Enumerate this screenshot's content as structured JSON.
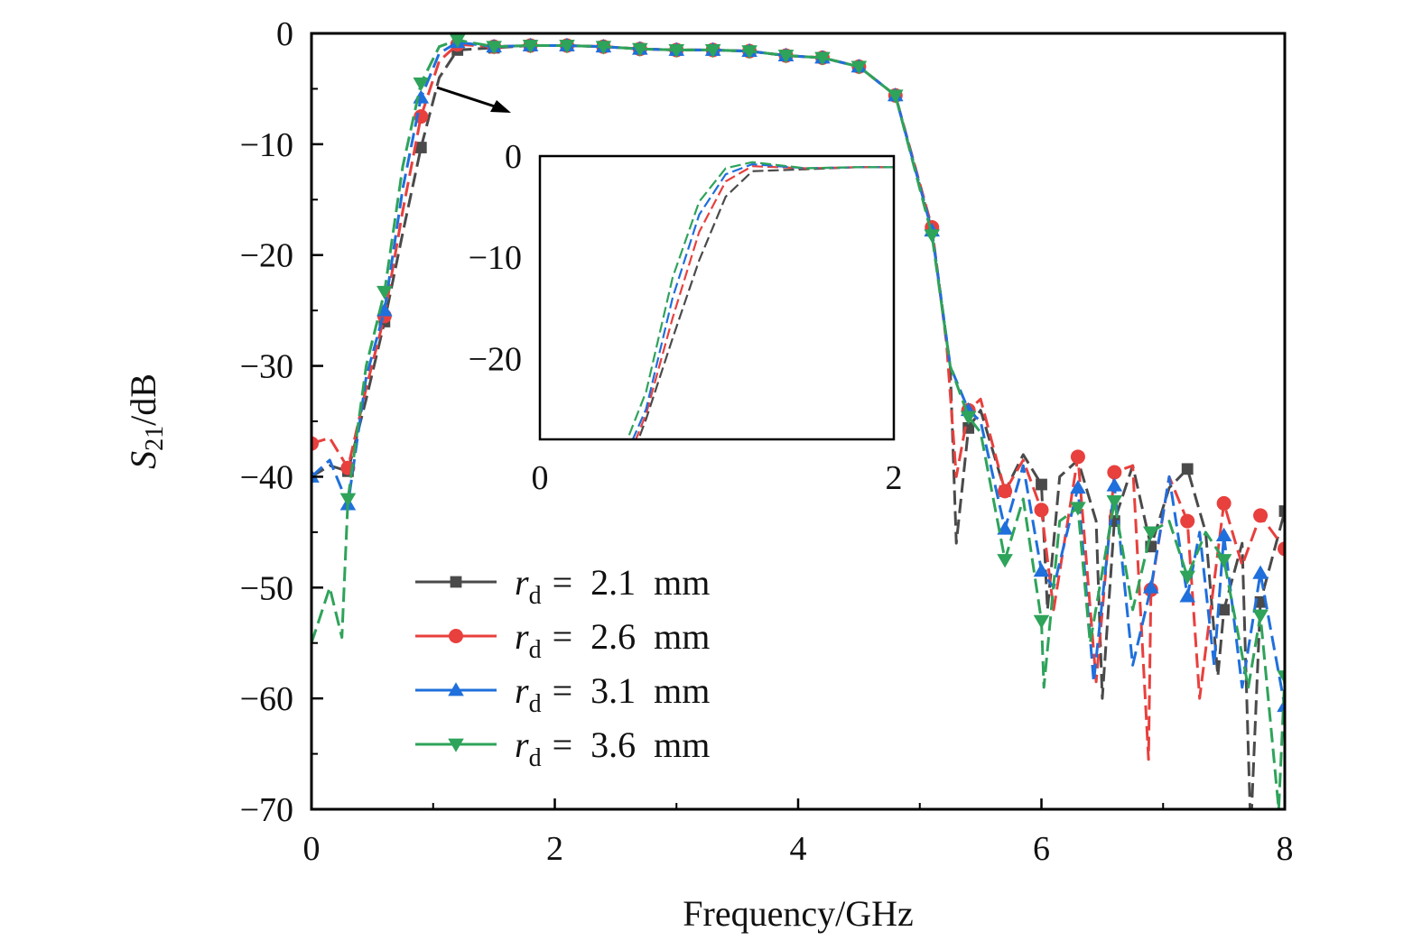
{
  "chart_data": {
    "type": "line",
    "xlabel": "Frequency/GHz",
    "ylabel": {
      "var": "S",
      "sub": "21",
      "unit": "/dB"
    },
    "xlim": [
      0,
      8
    ],
    "ylim": [
      -70,
      0
    ],
    "xticks": [
      0,
      2,
      4,
      6,
      8
    ],
    "yticks": [
      0,
      -10,
      -20,
      -30,
      -40,
      -50,
      -60,
      -70
    ],
    "ytick_labels": [
      "0",
      "−10",
      "−20",
      "−30",
      "−40",
      "−50",
      "−60",
      "−70"
    ],
    "grid": false,
    "legend_placement": "bottom-left",
    "inset": {
      "xlim": [
        0,
        2
      ],
      "ylim": [
        -28,
        0
      ],
      "xticks": [
        0,
        2
      ],
      "yticks": [
        0,
        -10,
        -20
      ],
      "ytick_labels": [
        "0",
        "−10",
        "−20"
      ]
    },
    "series": [
      {
        "name_var": "r",
        "name_sub": "d",
        "name_value": "= 2.1 mm",
        "color": "#4a4a4a",
        "marker": "square",
        "x": [
          0,
          0.15,
          0.3,
          0.45,
          0.6,
          0.75,
          0.9,
          1.05,
          1.2,
          1.5,
          1.8,
          2.1,
          2.4,
          2.7,
          3.0,
          3.3,
          3.6,
          3.9,
          4.2,
          4.5,
          4.8,
          5.1,
          5.25,
          5.3,
          5.4,
          5.5,
          5.7,
          5.85,
          6.0,
          6.05,
          6.15,
          6.3,
          6.45,
          6.5,
          6.6,
          6.75,
          6.9,
          7.05,
          7.2,
          7.35,
          7.45,
          7.5,
          7.65,
          7.72,
          7.8,
          8.0
        ],
        "y": [
          -40,
          -39,
          -39.5,
          -33,
          -26,
          -18,
          -10.3,
          -4,
          -1.5,
          -1.3,
          -1.1,
          -1.1,
          -1.2,
          -1.4,
          -1.5,
          -1.5,
          -1.6,
          -2.0,
          -2.2,
          -3.0,
          -5.6,
          -17.8,
          -30,
          -46,
          -35.6,
          -34,
          -41.3,
          -38,
          -40.7,
          -52,
          -40,
          -38.5,
          -44,
          -60,
          -44,
          -39,
          -46.3,
          -41,
          -39.3,
          -45,
          -58,
          -52,
          -46,
          -72,
          -51.3,
          -43.1
        ],
        "markers_x": [
          0.3,
          0.6,
          0.9,
          1.2,
          1.5,
          1.8,
          2.1,
          2.4,
          2.7,
          3.0,
          3.3,
          3.6,
          3.9,
          4.2,
          4.5,
          4.8,
          5.1,
          5.4,
          5.7,
          6.0,
          6.6,
          6.9,
          7.2,
          7.5,
          7.8,
          8.0
        ],
        "markers_y": [
          -39.5,
          -26,
          -10.3,
          -1.5,
          -1.3,
          -1.1,
          -1.1,
          -1.2,
          -1.4,
          -1.5,
          -1.5,
          -1.6,
          -2.0,
          -2.2,
          -3.0,
          -5.6,
          -17.8,
          -35.6,
          -41.3,
          -40.7,
          -44,
          -46.3,
          -39.3,
          -52,
          -51.3,
          -43.1
        ]
      },
      {
        "name_var": "r",
        "name_sub": "d",
        "name_value": "= 2.6 mm",
        "color": "#e8403d",
        "marker": "circle",
        "x": [
          0,
          0.15,
          0.3,
          0.45,
          0.6,
          0.75,
          0.9,
          1.05,
          1.2,
          1.5,
          1.8,
          2.1,
          2.4,
          2.7,
          3.0,
          3.3,
          3.6,
          3.9,
          4.2,
          4.5,
          4.8,
          5.1,
          5.22,
          5.3,
          5.4,
          5.5,
          5.7,
          5.85,
          6.0,
          6.1,
          6.3,
          6.45,
          6.6,
          6.75,
          6.88,
          6.9,
          7.05,
          7.2,
          7.3,
          7.5,
          7.65,
          7.8,
          8.0
        ],
        "y": [
          -37,
          -36.5,
          -39.2,
          -32,
          -25.5,
          -16,
          -7.5,
          -2.5,
          -1.0,
          -1.2,
          -1.1,
          -1.1,
          -1.2,
          -1.4,
          -1.5,
          -1.5,
          -1.6,
          -2.0,
          -2.2,
          -3.0,
          -5.6,
          -17.5,
          -28,
          -40,
          -34,
          -33,
          -41.3,
          -38.5,
          -43,
          -52,
          -38.2,
          -58.5,
          -39.6,
          -39,
          -65.5,
          -50.2,
          -40,
          -44,
          -60,
          -42.4,
          -48,
          -43.5,
          -46.5
        ],
        "markers_x": [
          0,
          0.3,
          0.6,
          0.9,
          1.2,
          1.5,
          1.8,
          2.1,
          2.4,
          2.7,
          3.0,
          3.3,
          3.6,
          3.9,
          4.2,
          4.5,
          4.8,
          5.1,
          5.4,
          5.7,
          6.0,
          6.3,
          6.6,
          6.9,
          7.2,
          7.5,
          7.8,
          8.0
        ],
        "markers_y": [
          -37,
          -39.2,
          -25.5,
          -7.5,
          -1.0,
          -1.2,
          -1.1,
          -1.1,
          -1.2,
          -1.4,
          -1.5,
          -1.5,
          -1.6,
          -2.0,
          -2.2,
          -3.0,
          -5.6,
          -17.5,
          -34,
          -41.3,
          -43,
          -38.2,
          -39.6,
          -50.2,
          -44,
          -42.4,
          -43.5,
          -46.5
        ]
      },
      {
        "name_var": "r",
        "name_sub": "d",
        "name_value": "= 3.1 mm",
        "color": "#1f6fdc",
        "marker": "triangle-up",
        "x": [
          0,
          0.15,
          0.3,
          0.45,
          0.6,
          0.75,
          0.9,
          1.05,
          1.2,
          1.5,
          1.8,
          2.1,
          2.4,
          2.7,
          3.0,
          3.3,
          3.6,
          3.9,
          4.2,
          4.5,
          4.8,
          5.1,
          5.25,
          5.4,
          5.5,
          5.7,
          5.85,
          6.0,
          6.1,
          6.3,
          6.43,
          6.6,
          6.75,
          6.9,
          7.05,
          7.2,
          7.3,
          7.42,
          7.5,
          7.65,
          7.8,
          8.0
        ],
        "y": [
          -40,
          -38.5,
          -42.5,
          -31,
          -25,
          -14,
          -5.8,
          -1.8,
          -0.8,
          -1.2,
          -1.1,
          -1.1,
          -1.2,
          -1.4,
          -1.5,
          -1.5,
          -1.6,
          -2.0,
          -2.2,
          -3.0,
          -5.6,
          -17.8,
          -30,
          -34,
          -35,
          -44.7,
          -39,
          -48.5,
          -50,
          -41,
          -58.5,
          -40.8,
          -57,
          -50,
          -40,
          -50.8,
          -45,
          -57,
          -45.3,
          -59,
          -48.7,
          -60.7
        ],
        "markers_x": [
          0,
          0.3,
          0.6,
          0.9,
          1.2,
          1.5,
          1.8,
          2.1,
          2.4,
          2.7,
          3.0,
          3.3,
          3.6,
          3.9,
          4.2,
          4.5,
          4.8,
          5.1,
          5.4,
          5.7,
          6.0,
          6.3,
          6.6,
          6.9,
          7.2,
          7.5,
          7.8,
          8.0
        ],
        "markers_y": [
          -40,
          -42.5,
          -25,
          -5.8,
          -0.8,
          -1.2,
          -1.1,
          -1.1,
          -1.2,
          -1.4,
          -1.5,
          -1.5,
          -1.6,
          -2.0,
          -2.2,
          -3.0,
          -5.6,
          -17.8,
          -34,
          -44.7,
          -48.5,
          -41,
          -40.8,
          -50,
          -50.8,
          -45.3,
          -48.7,
          -60.7
        ]
      },
      {
        "name_var": "r",
        "name_sub": "d",
        "name_value": "= 3.6 mm",
        "color": "#2ea35a",
        "marker": "triangle-down",
        "x": [
          0,
          0.15,
          0.25,
          0.3,
          0.45,
          0.6,
          0.75,
          0.9,
          1.05,
          1.2,
          1.5,
          1.8,
          2.1,
          2.4,
          2.7,
          3.0,
          3.3,
          3.6,
          3.9,
          4.2,
          4.5,
          4.8,
          5.1,
          5.25,
          5.4,
          5.5,
          5.7,
          5.85,
          6.0,
          6.02,
          6.15,
          6.3,
          6.4,
          6.6,
          6.75,
          6.9,
          7.05,
          7.2,
          7.35,
          7.5,
          7.7,
          7.8,
          7.95,
          8.0
        ],
        "y": [
          -55,
          -50,
          -54.5,
          -42,
          -30,
          -23.3,
          -12,
          -4.5,
          -1.2,
          -0.6,
          -1.2,
          -1.1,
          -1.1,
          -1.2,
          -1.4,
          -1.5,
          -1.5,
          -1.6,
          -2.0,
          -2.2,
          -3.0,
          -5.6,
          -18.2,
          -30,
          -34.6,
          -36,
          -47.5,
          -42,
          -53,
          -59,
          -44,
          -42.8,
          -55,
          -42.2,
          -52,
          -45,
          -44,
          -49,
          -45,
          -47.5,
          -59,
          -52.5,
          -70,
          -58
        ],
        "markers_x": [
          0.3,
          0.6,
          0.9,
          1.2,
          1.5,
          1.8,
          2.1,
          2.4,
          2.7,
          3.0,
          3.3,
          3.6,
          3.9,
          4.2,
          4.5,
          4.8,
          5.1,
          5.4,
          5.7,
          6.0,
          6.3,
          6.6,
          6.9,
          7.2,
          7.5,
          7.8,
          8.0
        ],
        "markers_y": [
          -42,
          -23.3,
          -4.5,
          -0.6,
          -1.2,
          -1.1,
          -1.1,
          -1.2,
          -1.4,
          -1.5,
          -1.5,
          -1.6,
          -2.0,
          -2.2,
          -3.0,
          -5.6,
          -18.2,
          -34.6,
          -47.5,
          -53,
          -42.8,
          -42.2,
          -45,
          -49,
          -47.5,
          -52.5,
          -58
        ]
      }
    ]
  }
}
